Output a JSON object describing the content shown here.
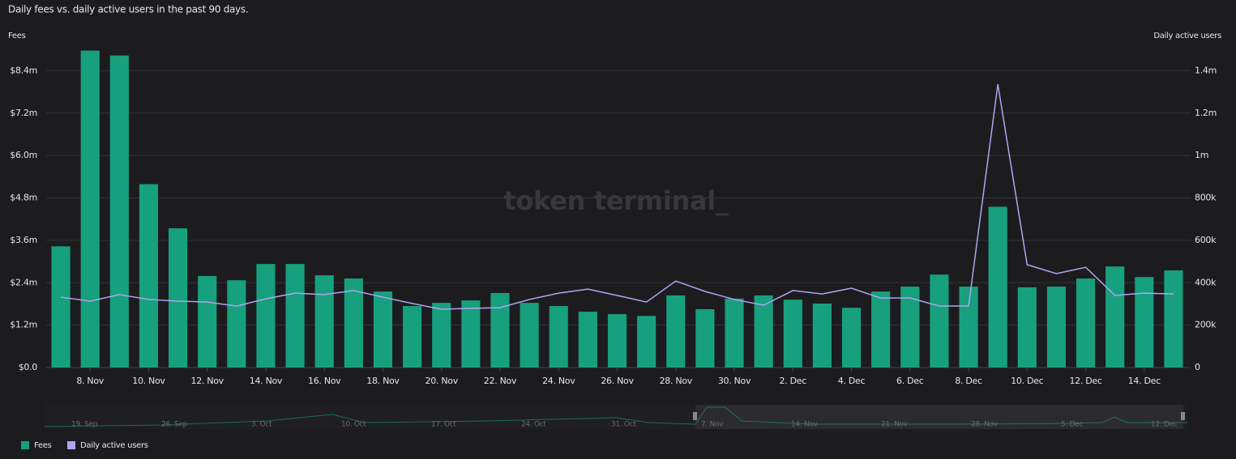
{
  "chart_data": {
    "type": "bar_line",
    "title": "Daily fees vs. daily active users in the past 90 days.",
    "watermark": "token terminal_",
    "y_axis_label": "Fees",
    "y2_axis_label": "Daily active users",
    "categories": [
      null,
      "8. Nov",
      null,
      "10. Nov",
      null,
      "12. Nov",
      null,
      "14. Nov",
      null,
      "16. Nov",
      null,
      "18. Nov",
      null,
      "20. Nov",
      null,
      "22. Nov",
      null,
      "24. Nov",
      null,
      "26. Nov",
      null,
      "28. Nov",
      null,
      "30. Nov",
      null,
      "2. Dec",
      null,
      "4. Dec",
      null,
      "6. Dec",
      null,
      "8. Dec",
      null,
      "10. Dec",
      null,
      "12. Dec",
      null,
      "14. Dec",
      null
    ],
    "series": [
      {
        "name": "Fees",
        "color": "#17a07d",
        "type": "bar",
        "values": [
          3.43,
          8.97,
          8.83,
          5.19,
          3.94,
          2.59,
          2.47,
          2.93,
          2.93,
          2.61,
          2.52,
          2.15,
          1.74,
          1.83,
          1.9,
          2.11,
          1.83,
          1.74,
          1.58,
          1.51,
          1.46,
          2.04,
          1.65,
          1.95,
          2.04,
          1.92,
          1.81,
          1.69,
          2.15,
          2.29,
          2.63,
          2.29,
          4.55,
          2.27,
          2.29,
          2.52,
          2.86,
          2.56,
          2.75
        ]
      },
      {
        "name": "Daily active users",
        "color": "#b3a3f2",
        "type": "line",
        "axis": "y2",
        "values": [
          332000,
          313000,
          344000,
          321000,
          313000,
          309000,
          290000,
          324000,
          351000,
          344000,
          363000,
          332000,
          302000,
          275000,
          279000,
          282000,
          321000,
          351000,
          370000,
          340000,
          309000,
          408000,
          359000,
          321000,
          294000,
          363000,
          347000,
          374000,
          328000,
          328000,
          290000,
          290000,
          1336000,
          485000,
          443000,
          473000,
          340000,
          351000,
          347000
        ]
      }
    ],
    "ylim": [
      0,
      9.6
    ],
    "yticks": [
      {
        "value": 0,
        "label": "$0.0"
      },
      {
        "value": 1.2,
        "label": "$1.2m"
      },
      {
        "value": 2.4,
        "label": "$2.4m"
      },
      {
        "value": 3.6,
        "label": "$3.6m"
      },
      {
        "value": 4.8,
        "label": "$4.8m"
      },
      {
        "value": 6.0,
        "label": "$6.0m"
      },
      {
        "value": 7.2,
        "label": "$7.2m"
      },
      {
        "value": 8.4,
        "label": "$8.4m"
      }
    ],
    "y2lim": [
      0,
      1600000
    ],
    "y2ticks": [
      0,
      {
        "value": 200000,
        "label": "200k"
      },
      {
        "value": 400000,
        "label": "400k"
      },
      {
        "value": 600000,
        "label": "600k"
      },
      {
        "value": 800000,
        "label": "800k"
      },
      {
        "value": 1000000,
        "label": "1m"
      },
      {
        "value": 1200000,
        "label": "1.2m"
      },
      {
        "value": 1400000,
        "label": "1.4m"
      }
    ],
    "grid": true,
    "legend": "bottom-left",
    "navigator_labels": [
      "19. Sep",
      "26. Sep",
      "3. Oct",
      "10. Oct",
      "17. Oct",
      "24. Oct",
      "31. Oct",
      "7. Nov",
      "14. Nov",
      "21. Nov",
      "28. Nov",
      "5. Dec",
      "12. Dec"
    ]
  }
}
